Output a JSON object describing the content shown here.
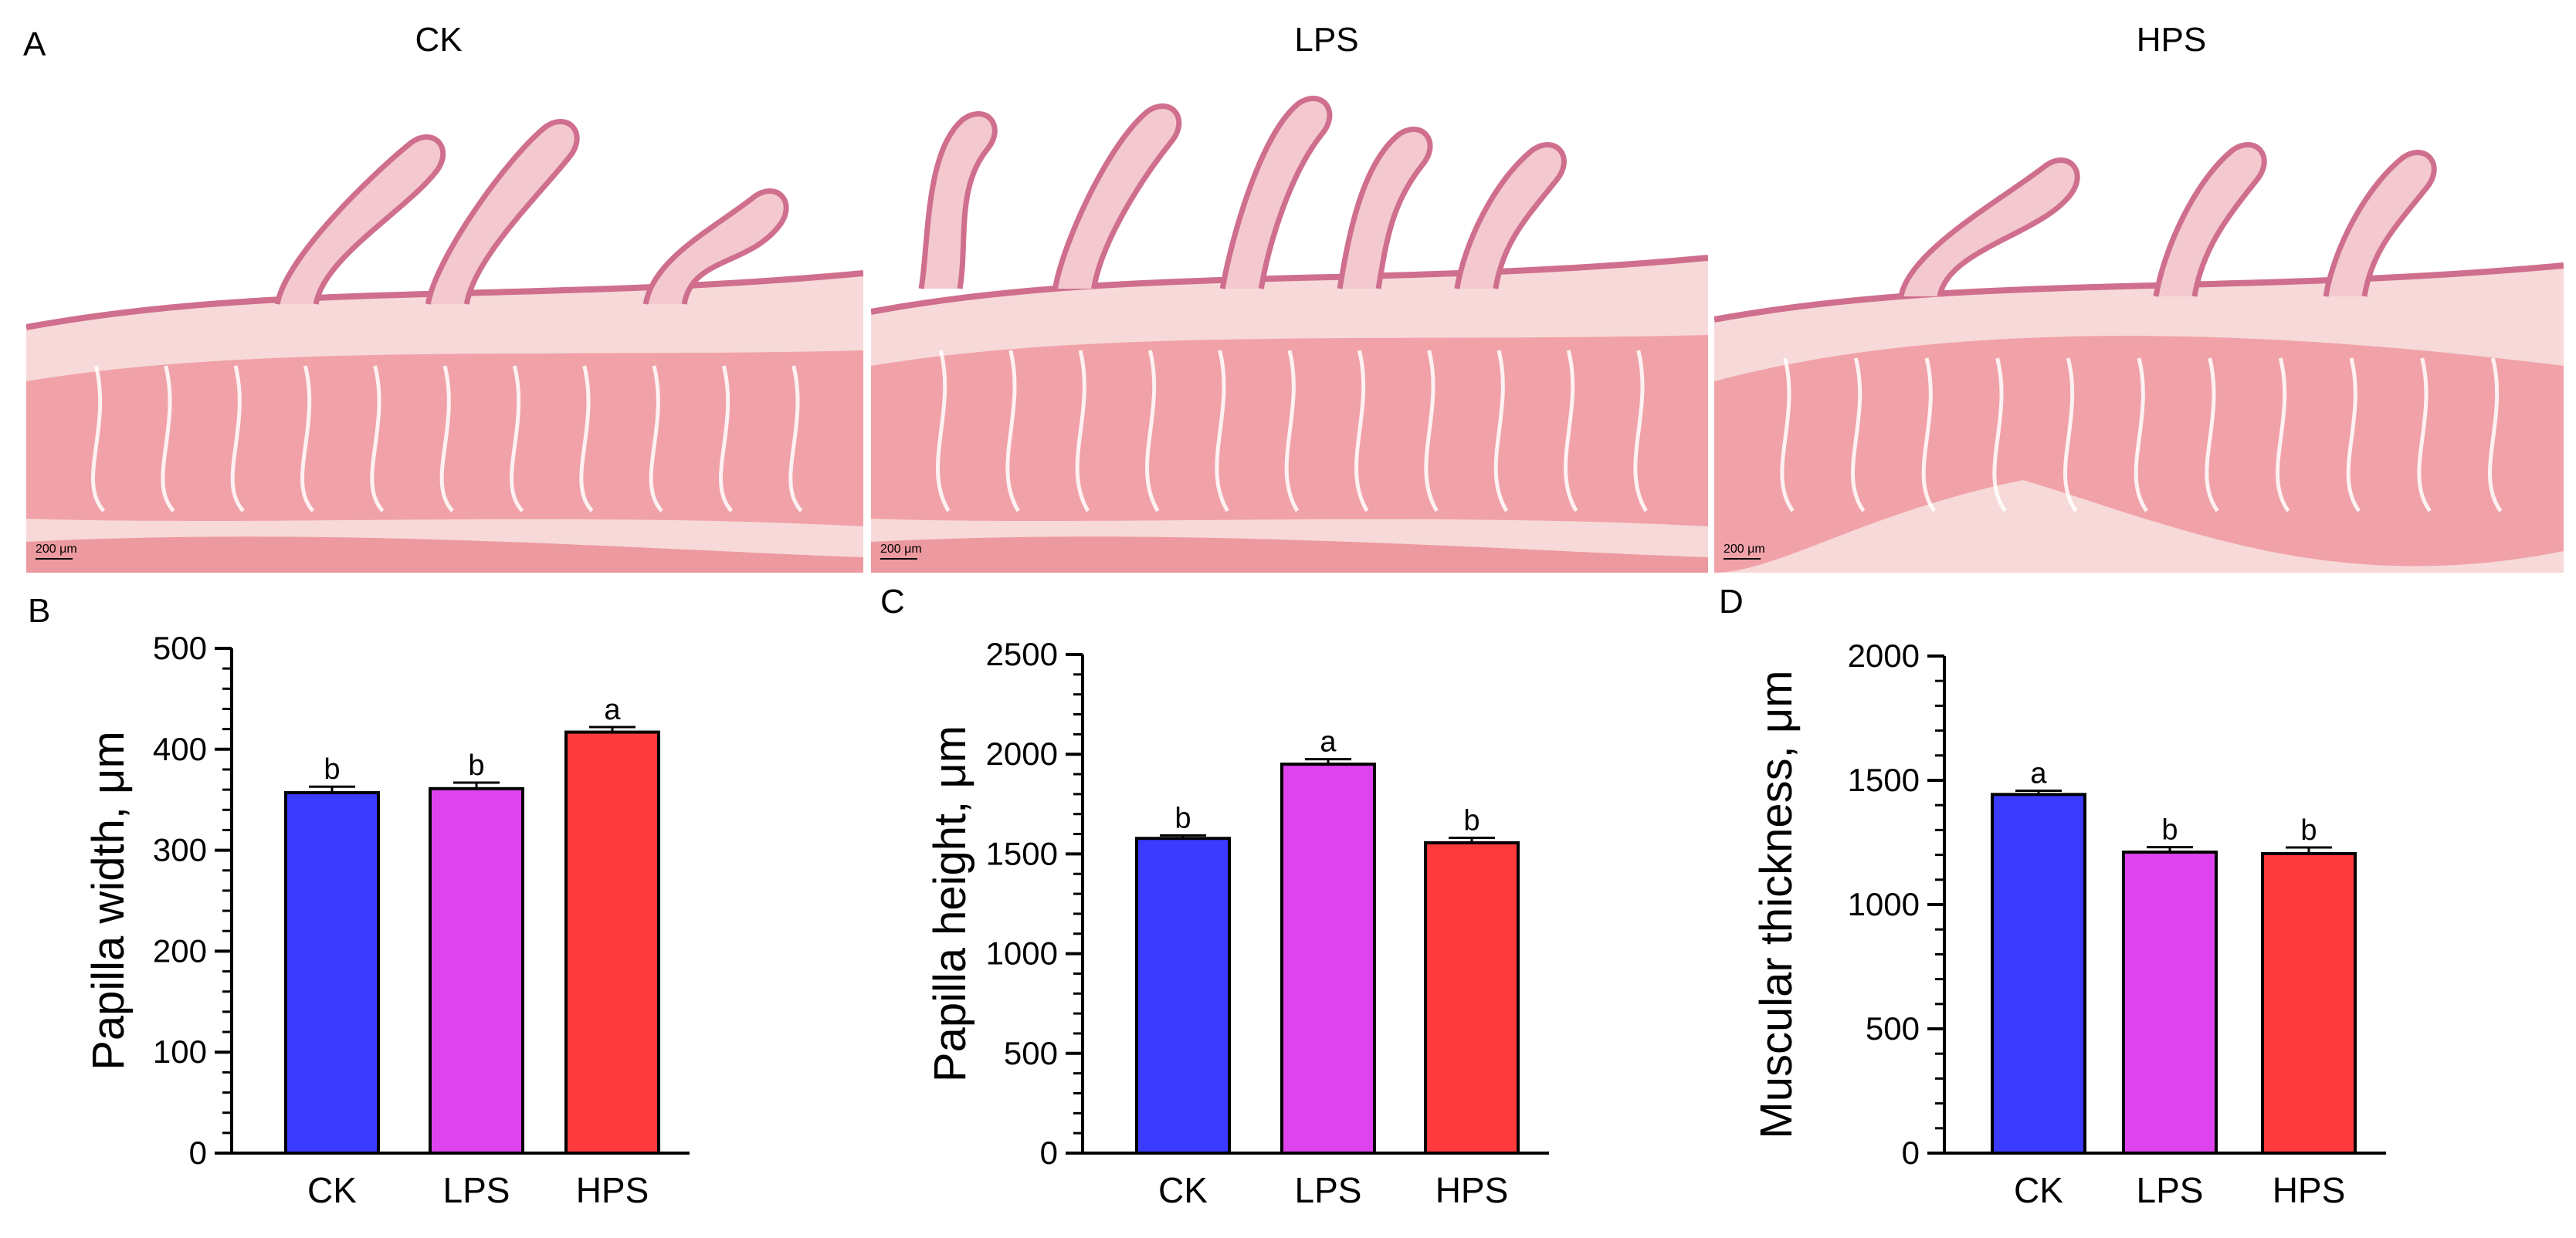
{
  "panels": {
    "a": {
      "letter": "A",
      "images": [
        {
          "title": "CK",
          "scale_bar": "200 μm"
        },
        {
          "title": "LPS",
          "scale_bar": "200 μm"
        },
        {
          "title": "HPS",
          "scale_bar": "200 μm"
        }
      ]
    }
  },
  "colors": {
    "CK": "#3b3bff",
    "LPS": "#de44ee",
    "HPS": "#ff3a3d",
    "tissue": "#f0a2a8",
    "tissue_dark": "#e98990",
    "tissue_light": "#f7d9d9",
    "epithelium": "#cf6f8d"
  },
  "chart_data": [
    {
      "panel": "B",
      "type": "bar",
      "categories": [
        "CK",
        "LPS",
        "HPS"
      ],
      "values": [
        357,
        361,
        417
      ],
      "errors": [
        6,
        6,
        5
      ],
      "significance": [
        "b",
        "b",
        "a"
      ],
      "ylabel": "Papilla width, μm",
      "ylim": [
        0,
        500
      ],
      "yticks": [
        0,
        100,
        200,
        300,
        400,
        500
      ],
      "grid": false
    },
    {
      "panel": "C",
      "type": "bar",
      "categories": [
        "CK",
        "LPS",
        "HPS"
      ],
      "values": [
        1578,
        1950,
        1556
      ],
      "errors": [
        15,
        25,
        25
      ],
      "significance": [
        "b",
        "a",
        "b"
      ],
      "ylabel": "Papilla height, μm",
      "ylim": [
        0,
        2500
      ],
      "yticks": [
        0,
        500,
        1000,
        1500,
        2000,
        2500
      ],
      "grid": false
    },
    {
      "panel": "D",
      "type": "bar",
      "categories": [
        "CK",
        "LPS",
        "HPS"
      ],
      "values": [
        1443,
        1211,
        1205
      ],
      "errors": [
        15,
        20,
        25
      ],
      "significance": [
        "a",
        "b",
        "b"
      ],
      "ylabel": "Muscular thickness, μm",
      "ylim": [
        0,
        2000
      ],
      "yticks": [
        0,
        500,
        1000,
        1500,
        2000
      ],
      "grid": false
    }
  ]
}
